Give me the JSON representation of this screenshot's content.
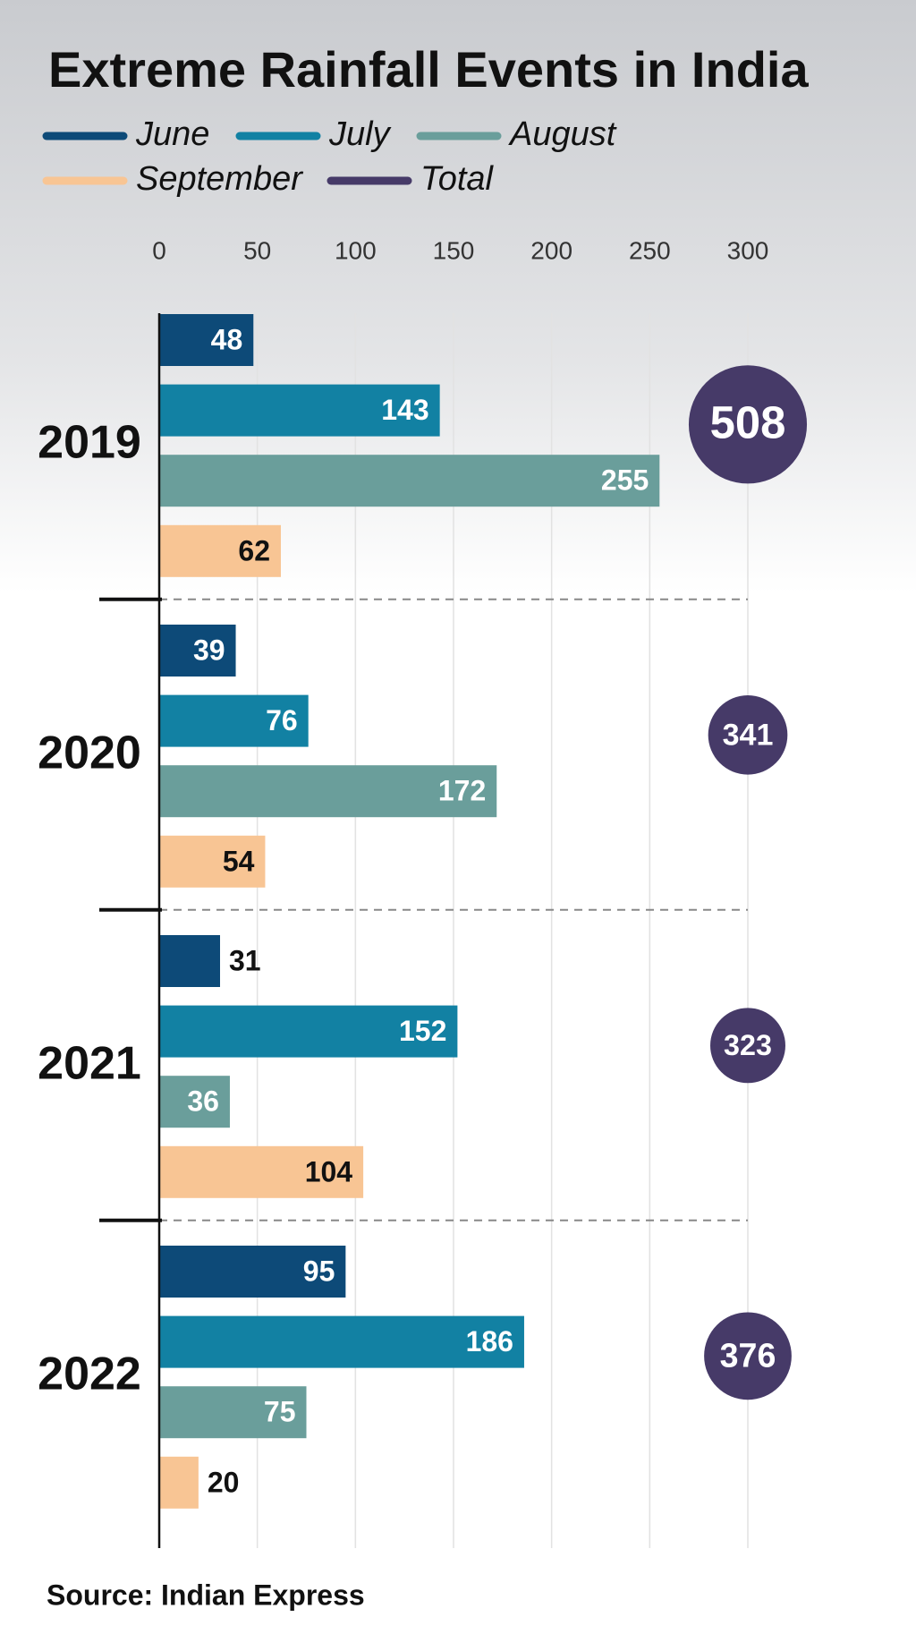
{
  "chart_data": {
    "type": "bar",
    "title": "Extreme Rainfall Events in India",
    "source": "Source: Indian Express",
    "categories": [
      "2019",
      "2020",
      "2021",
      "2022"
    ],
    "series": [
      {
        "name": "June",
        "color": "#0d4a78",
        "values": [
          48,
          39,
          31,
          95
        ]
      },
      {
        "name": "July",
        "color": "#1281a3",
        "values": [
          143,
          76,
          152,
          186
        ]
      },
      {
        "name": "August",
        "color": "#6a9e9b",
        "values": [
          255,
          172,
          36,
          75
        ]
      },
      {
        "name": "September",
        "color": "#f8c594",
        "values": [
          62,
          54,
          104,
          20
        ]
      }
    ],
    "total": {
      "name": "Total",
      "color": "#463a68",
      "values": [
        508,
        341,
        323,
        376
      ]
    },
    "xlim": [
      0,
      300
    ],
    "xticks": [
      0,
      50,
      100,
      150,
      200,
      250,
      300
    ],
    "grid": true
  }
}
